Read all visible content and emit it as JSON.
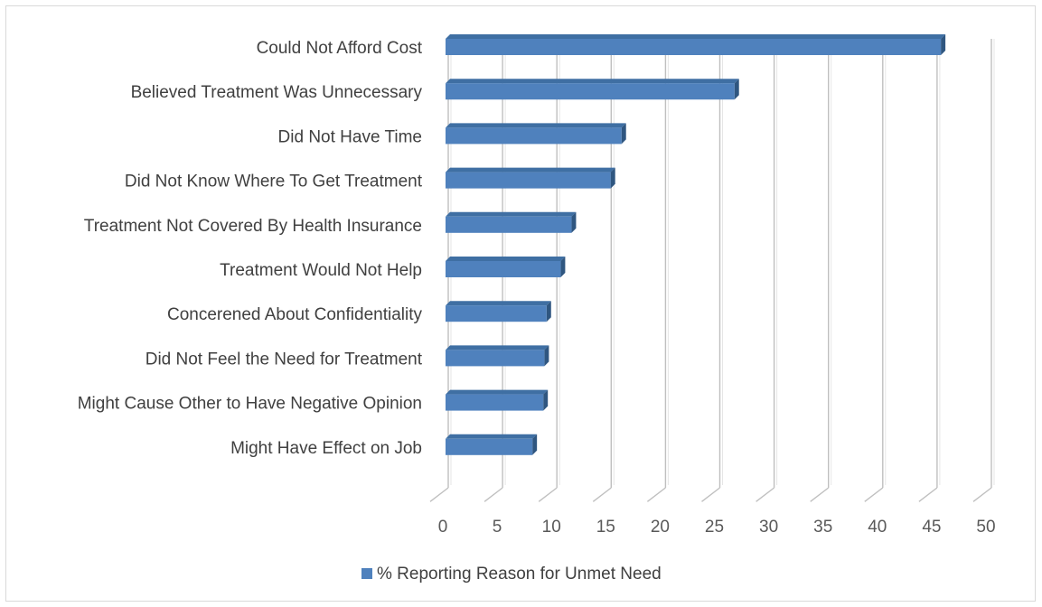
{
  "chart_data": {
    "type": "bar",
    "orientation": "horizontal",
    "style": "3d-clustered",
    "categories": [
      "Could Not Afford Cost",
      "Believed Treatment Was Unnecessary",
      "Did Not Have Time",
      "Did Not Know Where To Get Treatment",
      "Treatment Not Covered By Health Insurance",
      "Treatment Would Not Help",
      "Concerened About Confidentiality",
      "Did Not Feel the Need for Treatment",
      "Might Cause Other to Have Negative Opinion",
      "Might Have Effect on Job"
    ],
    "series": [
      {
        "name": "% Reporting Reason for Unmet Need",
        "color": "#4f81bd",
        "values": [
          45.6,
          26.6,
          16.2,
          15.2,
          11.6,
          10.6,
          9.3,
          9.1,
          9.0,
          8.0
        ]
      }
    ],
    "xlim": [
      0,
      50
    ],
    "xticks": [
      0,
      5,
      10,
      15,
      20,
      25,
      30,
      35,
      40,
      45,
      50
    ],
    "grid": true,
    "legend": "bottom",
    "title": "",
    "xlabel": "",
    "ylabel": ""
  }
}
